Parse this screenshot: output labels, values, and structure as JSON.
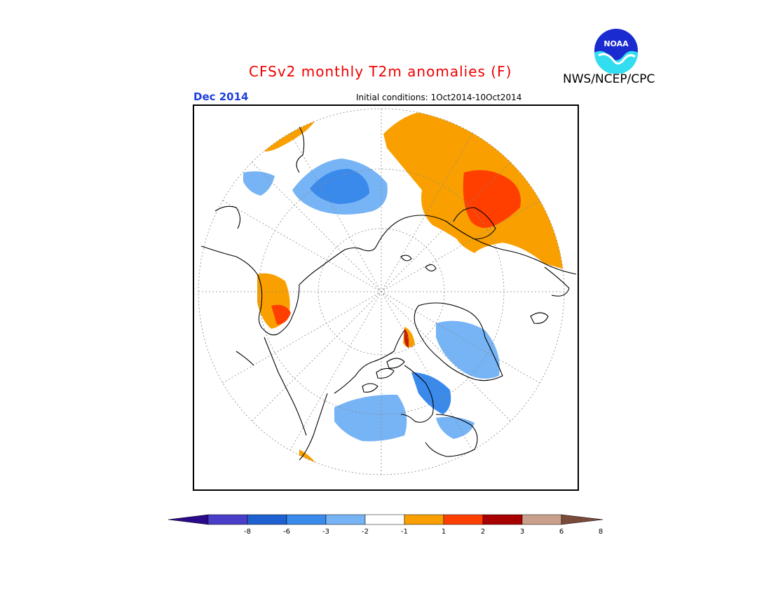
{
  "header": {
    "title": "CFSv2 monthly T2m anomalies (F)",
    "month": "Dec 2014",
    "initial_conditions": "Initial conditions: 1Oct2014-10Oct2014",
    "agency": "NWS/NCEP/CPC",
    "logo_text": "NOAA"
  },
  "map": {
    "projection": "north-polar-stereographic",
    "field": "T2m anomaly (F)"
  },
  "colorbar": {
    "labels": [
      "-8",
      "-6",
      "-3",
      "-2",
      "-1",
      "1",
      "2",
      "3",
      "6",
      "8"
    ],
    "colors": [
      "#2a0a8a",
      "#4a3ec8",
      "#1f60d0",
      "#3a8aec",
      "#77b4f5",
      "#ffffff",
      "#f9a000",
      "#ff3f00",
      "#a80000",
      "#c8a08c",
      "#7a4a3a"
    ]
  },
  "colors": {
    "title": "#ee0000",
    "month": "#1f3fdd"
  }
}
